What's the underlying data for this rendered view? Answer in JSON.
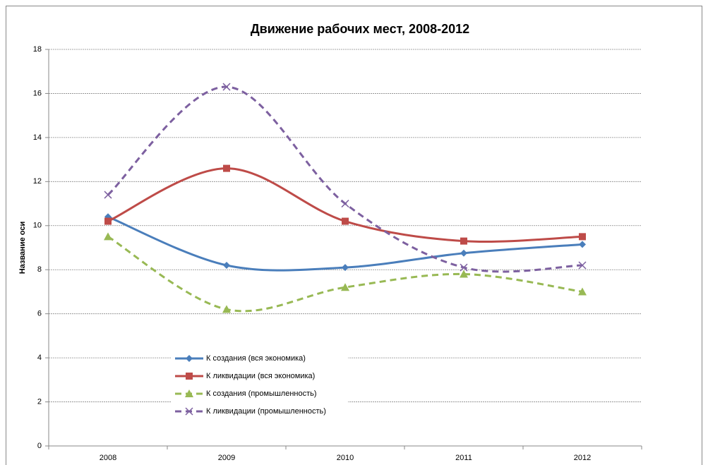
{
  "chart_data": {
    "type": "line",
    "title": "Движение рабочих мест, 2008-2012",
    "y_label": "Название оси",
    "categories": [
      "2008",
      "2009",
      "2010",
      "2011",
      "2012"
    ],
    "series": [
      {
        "name": "К создания (вся экономика)",
        "color": "#4a7ebb",
        "marker": "diamond",
        "dashed": false,
        "values": [
          10.4,
          8.2,
          8.1,
          8.75,
          9.15
        ]
      },
      {
        "name": "К ликвидации  (вся экономика)",
        "color": "#be4b48",
        "marker": "square",
        "dashed": false,
        "values": [
          10.2,
          12.6,
          10.2,
          9.3,
          9.5
        ]
      },
      {
        "name": "К создания (промышленность)",
        "color": "#98b954",
        "marker": "triangle",
        "dashed": true,
        "values": [
          9.5,
          6.2,
          7.2,
          7.8,
          7.0
        ]
      },
      {
        "name": "К ликвидации  (промышленность)",
        "color": "#7d60a0",
        "marker": "x",
        "dashed": true,
        "values": [
          11.4,
          16.3,
          11.0,
          8.1,
          8.2
        ]
      }
    ],
    "ylim": [
      0,
      18
    ],
    "yticks": [
      0,
      2,
      4,
      6,
      8,
      10,
      12,
      14,
      16,
      18
    ],
    "grid": true,
    "smooth": true
  }
}
